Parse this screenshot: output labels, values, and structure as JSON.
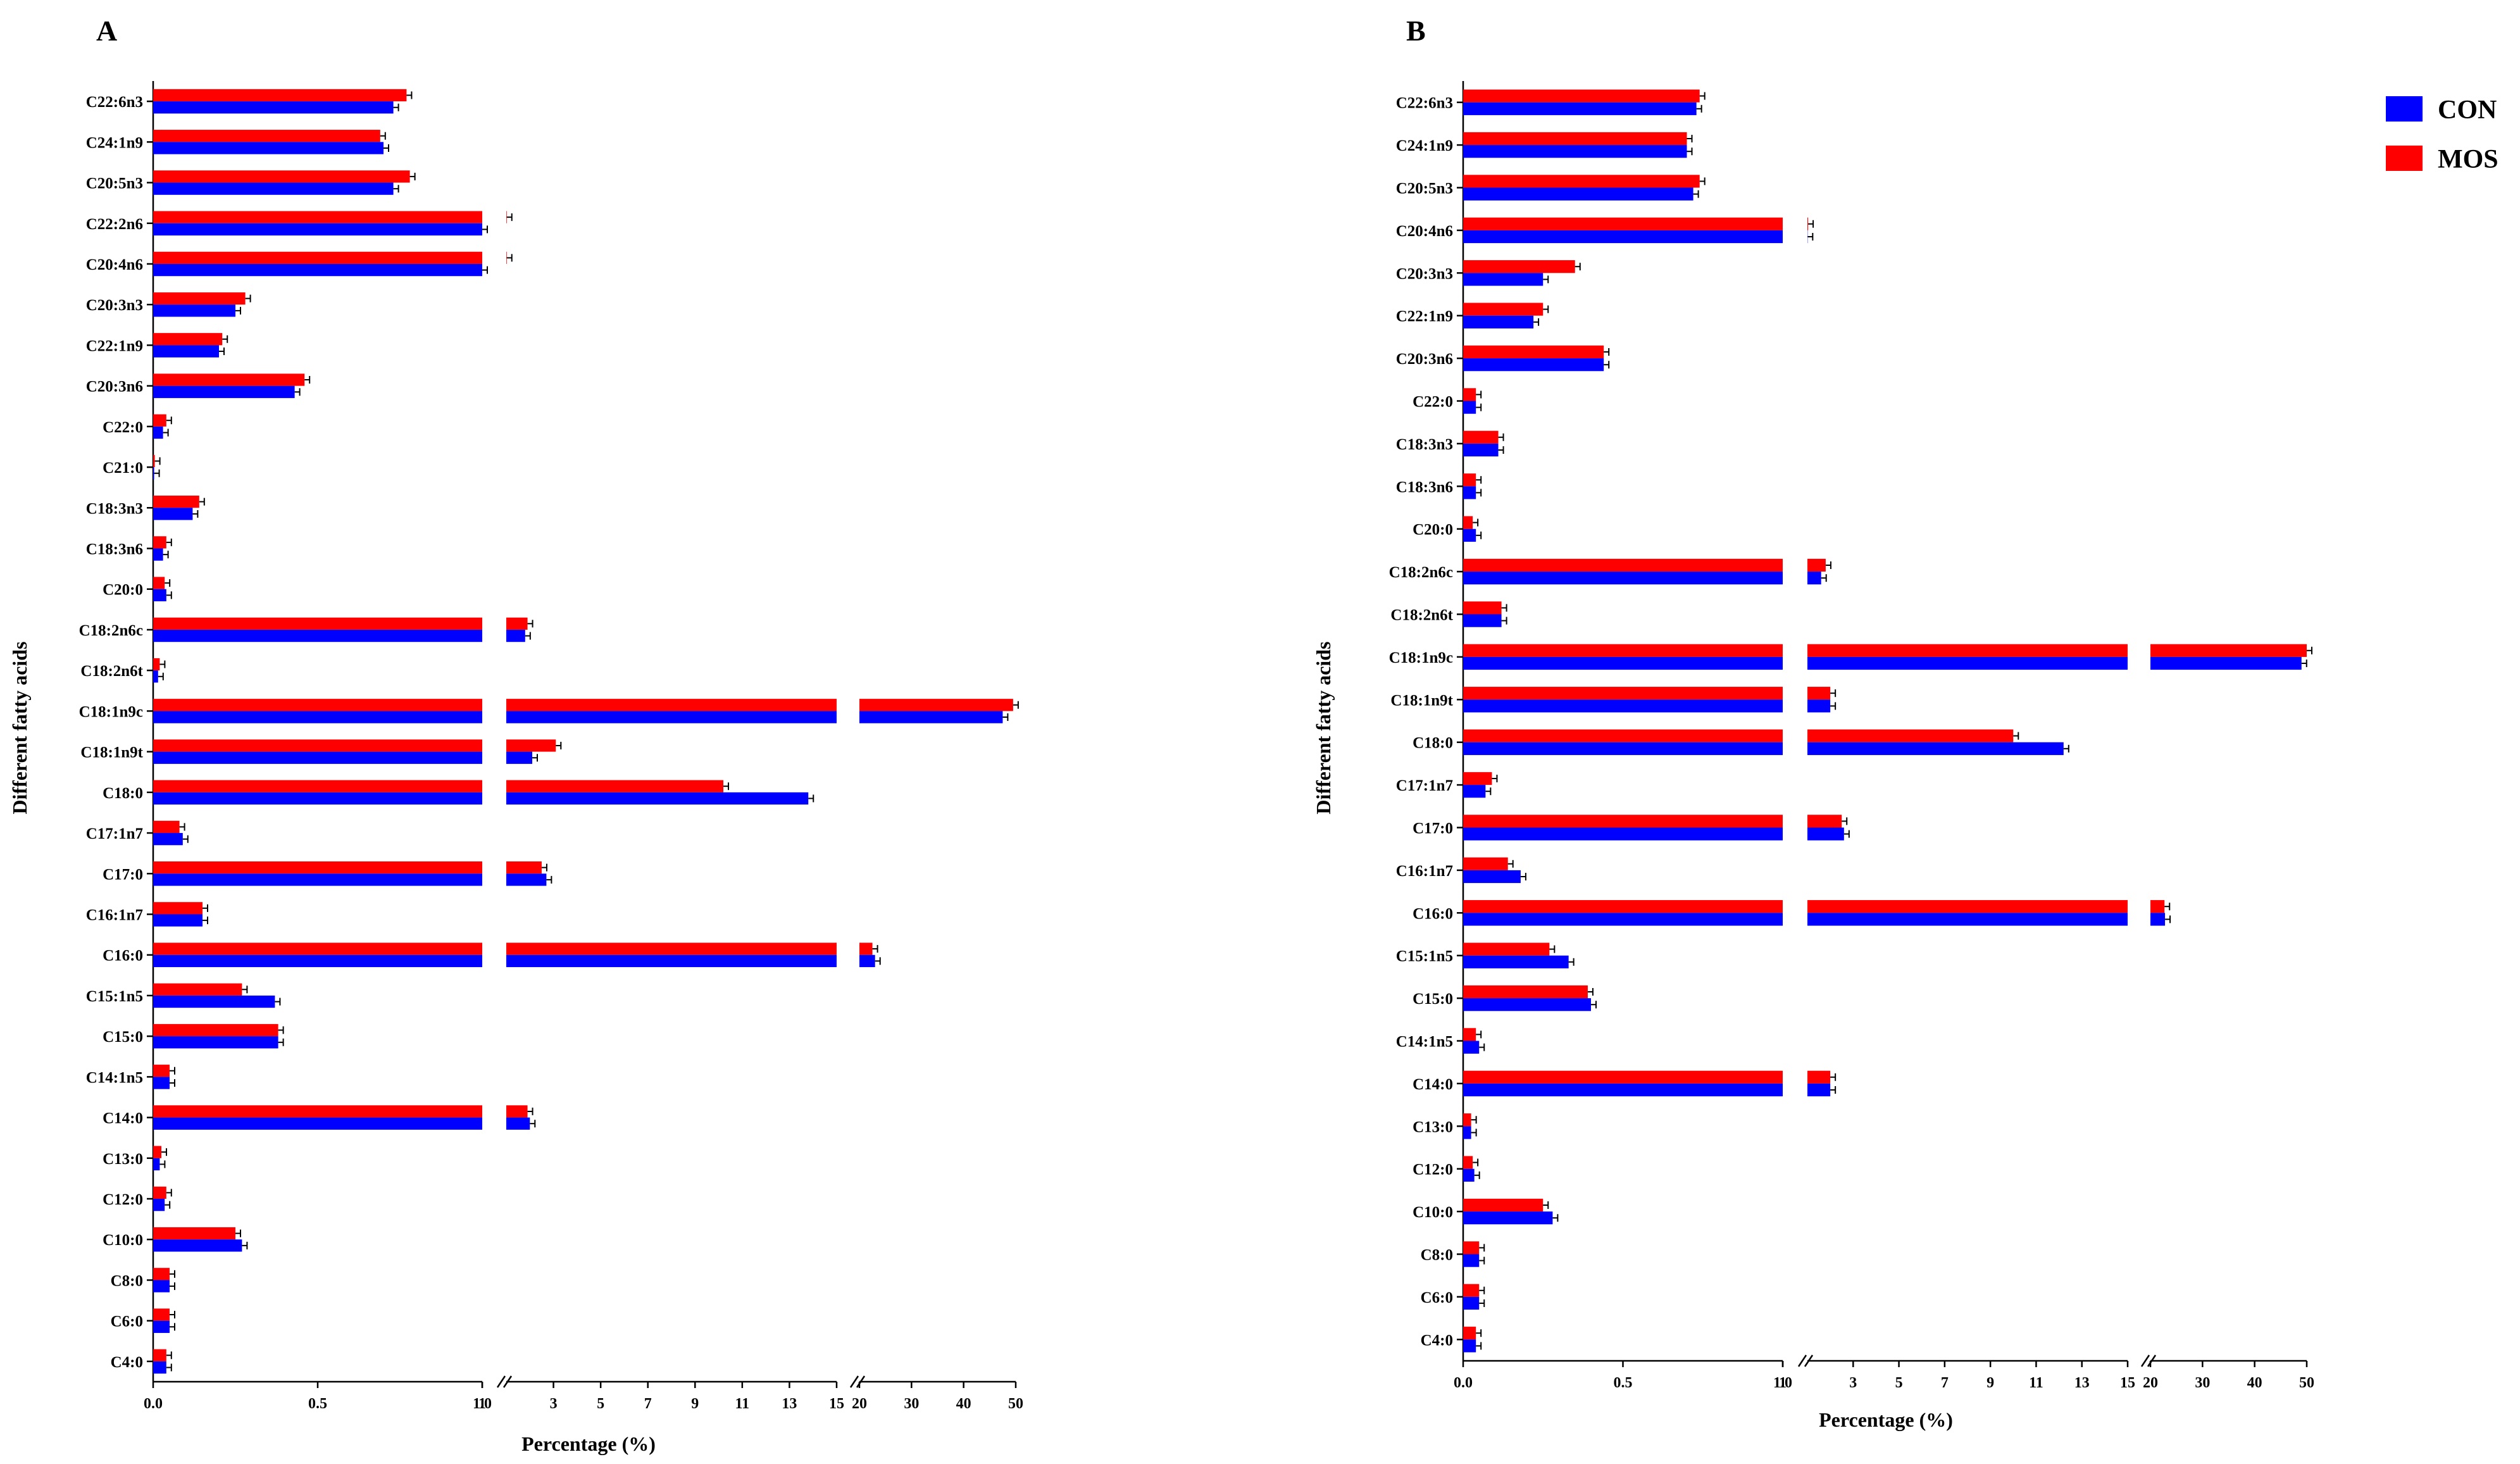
{
  "colors": {
    "CON": "#0000ff",
    "MOS": "#ff0000",
    "axis": "#000000"
  },
  "legend": [
    {
      "name": "CON",
      "color": "#0000ff"
    },
    {
      "name": "MOS",
      "color": "#ff0000"
    }
  ],
  "chart_data": [
    {
      "type": "bar",
      "orientation": "horizontal",
      "panel": "A",
      "xlabel": "Percentage (%)",
      "ylabel": "Different fatty acids",
      "x_axis_segments": [
        {
          "range": [
            0,
            1.0
          ],
          "ticks": [
            "0.0",
            "0.5",
            "1.0"
          ]
        },
        {
          "range": [
            1,
            15
          ],
          "ticks": [
            "1",
            "3",
            "5",
            "7",
            "9",
            "11",
            "13",
            "15"
          ]
        },
        {
          "range": [
            20,
            50
          ],
          "ticks": [
            "20",
            "30",
            "40",
            "50"
          ]
        }
      ],
      "categories": [
        "C22:6n3",
        "C24:1n9",
        "C20:5n3",
        "C22:2n6",
        "C20:4n6",
        "C20:3n3",
        "C22:1n9",
        "C20:3n6",
        "C22:0",
        "C21:0",
        "C18:3n3",
        "C18:3n6",
        "C20:0",
        "C18:2n6c",
        "C18:2n6t",
        "C18:1n9c",
        "C18:1n9t",
        "C18:0",
        "C17:1n7",
        "C17:0",
        "C16:1n7",
        "C16:0",
        "C15:1n5",
        "C15:0",
        "C14:1n5",
        "C14:0",
        "C13:0",
        "C12:0",
        "C10:0",
        "C8:0",
        "C6:0",
        "C4:0"
      ],
      "series": [
        {
          "name": "MOS",
          "values": [
            0.77,
            0.69,
            0.78,
            1.02,
            1.02,
            0.28,
            0.21,
            0.46,
            0.04,
            0.005,
            0.14,
            0.04,
            0.035,
            1.9,
            0.02,
            49.5,
            3.1,
            10.2,
            0.08,
            2.5,
            0.15,
            22.5,
            0.27,
            0.38,
            0.05,
            1.9,
            0.025,
            0.04,
            0.25,
            0.05,
            0.05,
            0.04
          ]
        },
        {
          "name": "CON",
          "values": [
            0.73,
            0.7,
            0.73,
            1.0,
            1.0,
            0.25,
            0.2,
            0.43,
            0.03,
            0.003,
            0.12,
            0.03,
            0.04,
            1.8,
            0.015,
            47.5,
            2.1,
            13.8,
            0.09,
            2.7,
            0.15,
            23.0,
            0.37,
            0.38,
            0.05,
            2.0,
            0.02,
            0.035,
            0.27,
            0.05,
            0.05,
            0.04
          ]
        }
      ]
    },
    {
      "type": "bar",
      "orientation": "horizontal",
      "panel": "B",
      "xlabel": "Percentage (%)",
      "ylabel": "Different fatty acids",
      "x_axis_segments": [
        {
          "range": [
            0,
            1.0
          ],
          "ticks": [
            "0.0",
            "0.5",
            "1.0"
          ]
        },
        {
          "range": [
            1,
            15
          ],
          "ticks": [
            "1",
            "3",
            "5",
            "7",
            "9",
            "11",
            "13",
            "15"
          ]
        },
        {
          "range": [
            20,
            50
          ],
          "ticks": [
            "20",
            "30",
            "40",
            "50"
          ]
        }
      ],
      "categories": [
        "C22:6n3",
        "C24:1n9",
        "C20:5n3",
        "C20:4n6",
        "C20:3n3",
        "C22:1n9",
        "C20:3n6",
        "C22:0",
        "C18:3n3",
        "C18:3n6",
        "C20:0",
        "C18:2n6c",
        "C18:2n6t",
        "C18:1n9c",
        "C18:1n9t",
        "C18:0",
        "C17:1n7",
        "C17:0",
        "C16:1n7",
        "C16:0",
        "C15:1n5",
        "C15:0",
        "C14:1n5",
        "C14:0",
        "C13:0",
        "C12:0",
        "C10:0",
        "C8:0",
        "C6:0",
        "C4:0"
      ],
      "series": [
        {
          "name": "MOS",
          "values": [
            0.74,
            0.7,
            0.74,
            1.03,
            0.35,
            0.25,
            0.44,
            0.04,
            0.11,
            0.04,
            0.03,
            1.8,
            0.12,
            50.0,
            2.0,
            10.0,
            0.09,
            2.5,
            0.14,
            22.7,
            0.27,
            0.39,
            0.04,
            2.0,
            0.025,
            0.03,
            0.25,
            0.05,
            0.05,
            0.04
          ]
        },
        {
          "name": "CON",
          "values": [
            0.73,
            0.7,
            0.72,
            1.01,
            0.25,
            0.22,
            0.44,
            0.04,
            0.11,
            0.04,
            0.04,
            1.6,
            0.12,
            49.0,
            2.0,
            12.2,
            0.07,
            2.6,
            0.18,
            22.8,
            0.33,
            0.4,
            0.05,
            2.0,
            0.025,
            0.035,
            0.28,
            0.05,
            0.05,
            0.04
          ]
        }
      ]
    }
  ]
}
